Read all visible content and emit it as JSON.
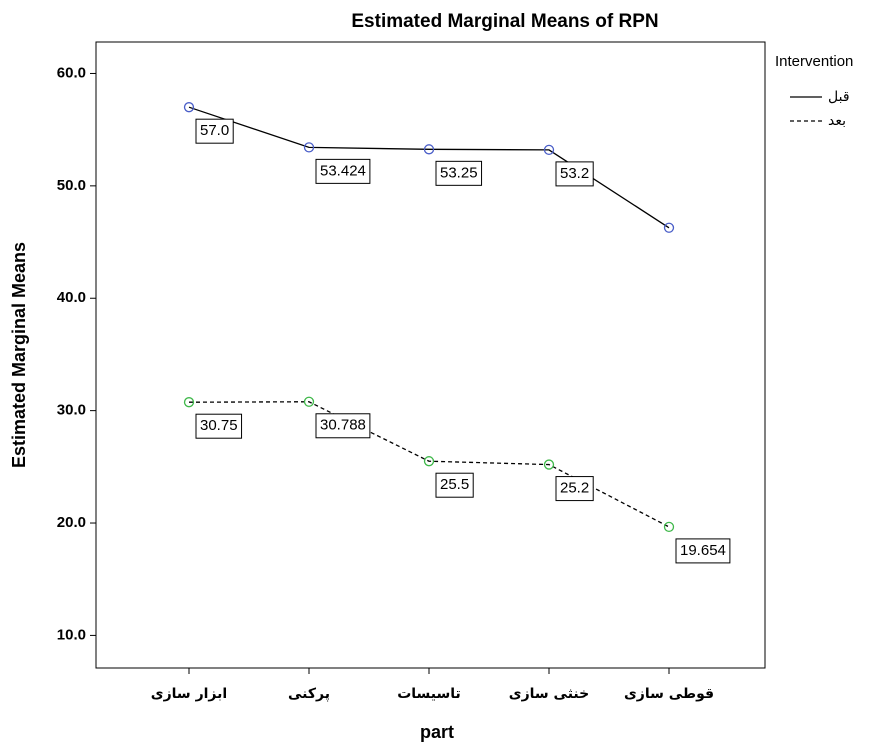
{
  "chart_data": {
    "type": "line",
    "title": "Estimated Marginal Means of RPN",
    "x_label": "part",
    "y_label": "Estimated Marginal Means",
    "categories": [
      "ابزار سازی",
      "پرکنی",
      "تاسیسات",
      "خنثی سازی",
      "قوطی سازی"
    ],
    "series": [
      {
        "name": "قبل",
        "color": "#000000",
        "marker_color": "#4a5ec8",
        "dash": "solid",
        "values": [
          57.0,
          53.424,
          53.25,
          53.2,
          46.27
        ],
        "value_labels": [
          "57.0",
          "53.424",
          "53.25",
          "53.2",
          null
        ]
      },
      {
        "name": "بعد",
        "color": "#000000",
        "marker_color": "#3fb84a",
        "dash": "dashed",
        "values": [
          30.75,
          30.788,
          25.5,
          25.2,
          19.654
        ]
      }
    ],
    "ylim": [
      7.1,
      62.8
    ],
    "yticks": [
      {
        "value": 10,
        "label": "10.0"
      },
      {
        "value": 20,
        "label": "20.0"
      },
      {
        "value": 30,
        "label": "30.0"
      },
      {
        "value": 40,
        "label": "40.0"
      },
      {
        "value": 50,
        "label": "50.0"
      },
      {
        "value": 60,
        "label": "60.0"
      }
    ],
    "legend_title": "Intervention",
    "legend": "right",
    "grid": false
  }
}
